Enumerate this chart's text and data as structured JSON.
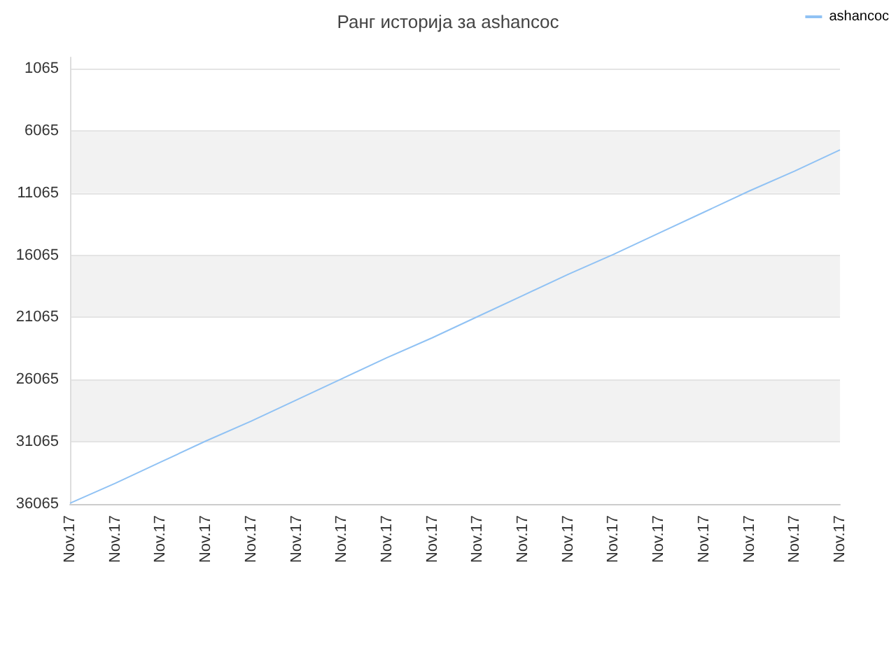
{
  "chart_data": {
    "type": "line",
    "title": "Ранг историја за ashancoc",
    "categories": [
      "Nov.17",
      "Nov.17",
      "Nov.17",
      "Nov.17",
      "Nov.17",
      "Nov.17",
      "Nov.17",
      "Nov.17",
      "Nov.17",
      "Nov.17",
      "Nov.17",
      "Nov.17",
      "Nov.17",
      "Nov.17",
      "Nov.17",
      "Nov.17",
      "Nov.17",
      "Nov.17"
    ],
    "series": [
      {
        "name": "ashancoc",
        "color": "#90c2f4",
        "values": [
          36000,
          34400,
          32700,
          31000,
          29400,
          27700,
          26000,
          24300,
          22700,
          21000,
          19300,
          17600,
          16000,
          14300,
          12600,
          10900,
          9300,
          7600
        ]
      }
    ],
    "ylim": [
      36065,
      165
    ],
    "yticks": [
      1065,
      6065,
      11065,
      16065,
      21065,
      26065,
      31065,
      36065
    ],
    "grid": "y",
    "legend": "top right",
    "marker": "none",
    "line_style": "solid"
  }
}
